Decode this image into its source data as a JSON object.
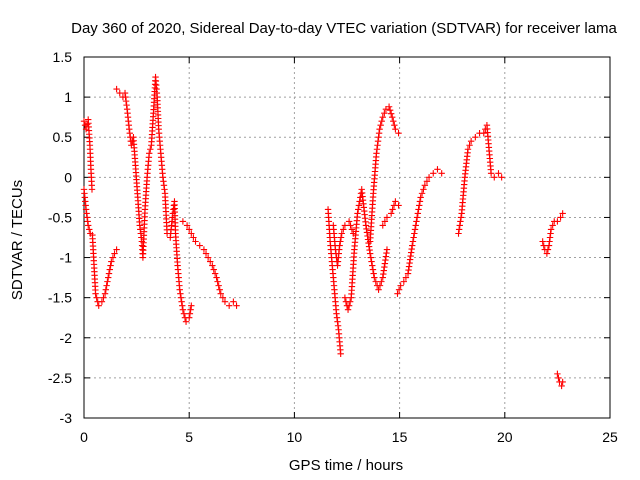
{
  "chart_data": {
    "type": "scatter",
    "title": "Day 360 of 2020, Sidereal Day-to-day VTEC variation (SDTVAR) for receiver lama",
    "xlabel": "GPS time / hours",
    "ylabel": "SDTVAR / TECUs",
    "xlim": [
      0,
      25
    ],
    "ylim": [
      -3,
      1.5
    ],
    "xticks": [
      "0",
      "5",
      "10",
      "15",
      "20",
      "25"
    ],
    "yticks": [
      "1.5",
      "1",
      "0.5",
      "0",
      "-0.5",
      "-1",
      "-1.5",
      "-2",
      "-2.5",
      "-3"
    ],
    "grid": true,
    "marker": "+",
    "series_color": "#ff0000",
    "trace": [
      [
        0.0,
        0.7
      ],
      [
        0.1,
        0.6
      ],
      [
        0.2,
        0.72
      ],
      [
        0.28,
        0.4
      ],
      [
        0.33,
        0.1
      ],
      [
        0.38,
        -0.15
      ],
      [
        0.0,
        -0.15
      ],
      [
        0.1,
        -0.4
      ],
      [
        0.2,
        -0.6
      ],
      [
        0.3,
        -0.7
      ],
      [
        0.4,
        -0.72
      ],
      [
        0.55,
        -1.45
      ],
      [
        0.7,
        -1.6
      ],
      [
        0.85,
        -1.55
      ],
      [
        1.0,
        -1.45
      ],
      [
        1.15,
        -1.25
      ],
      [
        1.3,
        -1.05
      ],
      [
        1.45,
        -0.95
      ],
      [
        1.55,
        -0.9
      ],
      [
        1.55,
        1.1
      ],
      [
        1.7,
        1.05
      ],
      [
        1.85,
        1.0
      ],
      [
        1.95,
        1.05
      ],
      [
        2.05,
        0.85
      ],
      [
        2.15,
        0.6
      ],
      [
        2.25,
        0.4
      ],
      [
        2.35,
        0.5
      ],
      [
        2.65,
        -0.6
      ],
      [
        2.75,
        -0.8
      ],
      [
        2.8,
        -1.0
      ],
      [
        2.9,
        -0.4
      ],
      [
        3.0,
        0.0
      ],
      [
        3.1,
        0.3
      ],
      [
        3.2,
        0.4
      ],
      [
        3.3,
        0.8
      ],
      [
        3.4,
        1.25
      ],
      [
        3.48,
        1.0
      ],
      [
        3.55,
        0.6
      ],
      [
        3.65,
        0.3
      ],
      [
        3.75,
        0.0
      ],
      [
        3.85,
        -0.2
      ],
      [
        3.95,
        -0.7
      ],
      [
        4.1,
        -0.75
      ],
      [
        4.2,
        -0.5
      ],
      [
        4.3,
        -0.3
      ],
      [
        4.35,
        -0.7
      ],
      [
        4.45,
        -1.1
      ],
      [
        4.55,
        -1.4
      ],
      [
        4.7,
        -1.65
      ],
      [
        4.85,
        -1.8
      ],
      [
        5.0,
        -1.75
      ],
      [
        5.1,
        -1.6
      ],
      [
        4.7,
        -0.55
      ],
      [
        4.9,
        -0.6
      ],
      [
        5.1,
        -0.7
      ],
      [
        5.3,
        -0.8
      ],
      [
        5.5,
        -0.85
      ],
      [
        5.7,
        -0.9
      ],
      [
        5.9,
        -1.0
      ],
      [
        6.1,
        -1.1
      ],
      [
        6.3,
        -1.25
      ],
      [
        6.5,
        -1.45
      ],
      [
        6.7,
        -1.55
      ],
      [
        6.9,
        -1.6
      ],
      [
        7.1,
        -1.55
      ],
      [
        7.25,
        -1.6
      ],
      [
        11.6,
        -0.4
      ],
      [
        11.65,
        -0.6
      ],
      [
        11.7,
        -0.8
      ],
      [
        11.8,
        -1.1
      ],
      [
        11.9,
        -1.4
      ],
      [
        12.0,
        -1.7
      ],
      [
        12.1,
        -1.9
      ],
      [
        12.2,
        -2.2
      ],
      [
        11.85,
        -0.6
      ],
      [
        11.95,
        -0.9
      ],
      [
        12.05,
        -1.1
      ],
      [
        12.15,
        -0.85
      ],
      [
        12.25,
        -0.7
      ],
      [
        12.4,
        -0.6
      ],
      [
        12.6,
        -0.55
      ],
      [
        12.8,
        -0.7
      ],
      [
        12.4,
        -1.5
      ],
      [
        12.55,
        -1.65
      ],
      [
        12.7,
        -1.5
      ],
      [
        12.85,
        -0.9
      ],
      [
        13.0,
        -0.45
      ],
      [
        13.2,
        -0.15
      ],
      [
        13.4,
        -0.6
      ],
      [
        13.6,
        -0.95
      ],
      [
        13.8,
        -1.25
      ],
      [
        14.0,
        -1.4
      ],
      [
        14.2,
        -1.25
      ],
      [
        14.4,
        -0.9
      ],
      [
        13.6,
        -0.8
      ],
      [
        13.75,
        -0.2
      ],
      [
        13.9,
        0.3
      ],
      [
        14.05,
        0.6
      ],
      [
        14.2,
        0.75
      ],
      [
        14.35,
        0.85
      ],
      [
        14.5,
        0.88
      ],
      [
        14.65,
        0.75
      ],
      [
        14.8,
        0.6
      ],
      [
        14.95,
        0.55
      ],
      [
        14.2,
        -0.6
      ],
      [
        14.4,
        -0.5
      ],
      [
        14.6,
        -0.45
      ],
      [
        14.8,
        -0.3
      ],
      [
        14.95,
        -0.35
      ],
      [
        14.9,
        -1.45
      ],
      [
        15.05,
        -1.35
      ],
      [
        15.2,
        -1.3
      ],
      [
        15.4,
        -1.2
      ],
      [
        15.6,
        -0.85
      ],
      [
        15.8,
        -0.55
      ],
      [
        16.0,
        -0.25
      ],
      [
        16.2,
        -0.1
      ],
      [
        16.4,
        0.0
      ],
      [
        16.6,
        0.05
      ],
      [
        16.8,
        0.1
      ],
      [
        17.0,
        0.05
      ],
      [
        17.8,
        -0.7
      ],
      [
        17.95,
        -0.45
      ],
      [
        18.1,
        0.0
      ],
      [
        18.25,
        0.35
      ],
      [
        18.4,
        0.45
      ],
      [
        18.6,
        0.5
      ],
      [
        18.8,
        0.55
      ],
      [
        19.0,
        0.55
      ],
      [
        19.15,
        0.65
      ],
      [
        19.35,
        0.05
      ],
      [
        19.5,
        0.0
      ],
      [
        19.7,
        0.05
      ],
      [
        19.85,
        0.0
      ],
      [
        21.8,
        -0.8
      ],
      [
        21.9,
        -0.9
      ],
      [
        22.0,
        -0.95
      ],
      [
        22.1,
        -0.85
      ],
      [
        22.2,
        -0.65
      ],
      [
        22.35,
        -0.55
      ],
      [
        22.5,
        -0.55
      ],
      [
        22.65,
        -0.5
      ],
      [
        22.75,
        -0.45
      ],
      [
        22.5,
        -2.45
      ],
      [
        22.6,
        -2.55
      ],
      [
        22.7,
        -2.6
      ],
      [
        22.75,
        -2.55
      ]
    ]
  }
}
